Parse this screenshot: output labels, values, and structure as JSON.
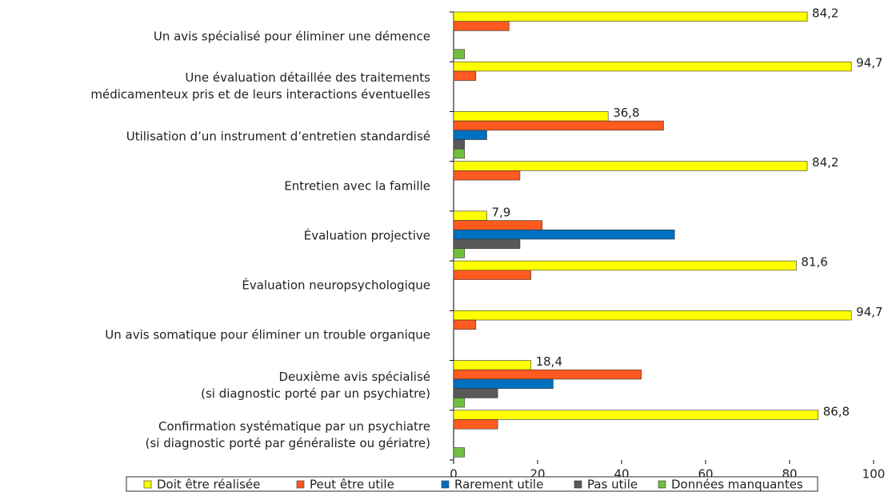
{
  "chart_data": {
    "type": "hbar",
    "categories": [
      "Un avis spécialisé pour éliminer une démence",
      "Une évaluation détaillée des traitements\nmédicamenteux pris et de leurs interactions éventuelles",
      "Utilisation d’un instrument d’entretien standardisé",
      "Entretien avec la famille",
      "Évaluation projective",
      "Évaluation neuropsychologique",
      "Un avis somatique pour éliminer un trouble organique",
      "Deuxième avis spécialisé\n(si diagnostic porté par un psychiatre)",
      "Confirmation systématique par un psychiatre\n(si diagnostic porté par généraliste ou gériatre)"
    ],
    "series": [
      {
        "name": "Doit être réalisée",
        "color": "#ffff00",
        "values": [
          84.2,
          94.7,
          36.8,
          84.2,
          7.9,
          81.6,
          94.7,
          18.4,
          86.8
        ],
        "value_labels": [
          "84,2",
          "94,7",
          "36,8",
          "84,2",
          "7,9",
          "81,6",
          "94,7",
          "18,4",
          "86,8"
        ]
      },
      {
        "name": "Peut être utile",
        "color": "#ff5a1f",
        "values": [
          13.2,
          5.3,
          50.0,
          15.8,
          21.1,
          18.4,
          5.3,
          44.7,
          10.5
        ]
      },
      {
        "name": "Rarement utile",
        "color": "#0070c0",
        "values": [
          0,
          0,
          7.9,
          0,
          52.6,
          0,
          0,
          23.7,
          0
        ]
      },
      {
        "name": "Pas utile",
        "color": "#595959",
        "values": [
          0,
          0,
          2.6,
          0,
          15.8,
          0,
          0,
          10.5,
          0
        ]
      },
      {
        "name": "Données manquantes",
        "color": "#70c040",
        "values": [
          2.6,
          0,
          2.6,
          0,
          2.6,
          0,
          0,
          2.6,
          2.6
        ]
      }
    ],
    "xlim": [
      0,
      100
    ],
    "xticks": [
      0,
      20,
      40,
      60,
      80,
      100
    ]
  }
}
